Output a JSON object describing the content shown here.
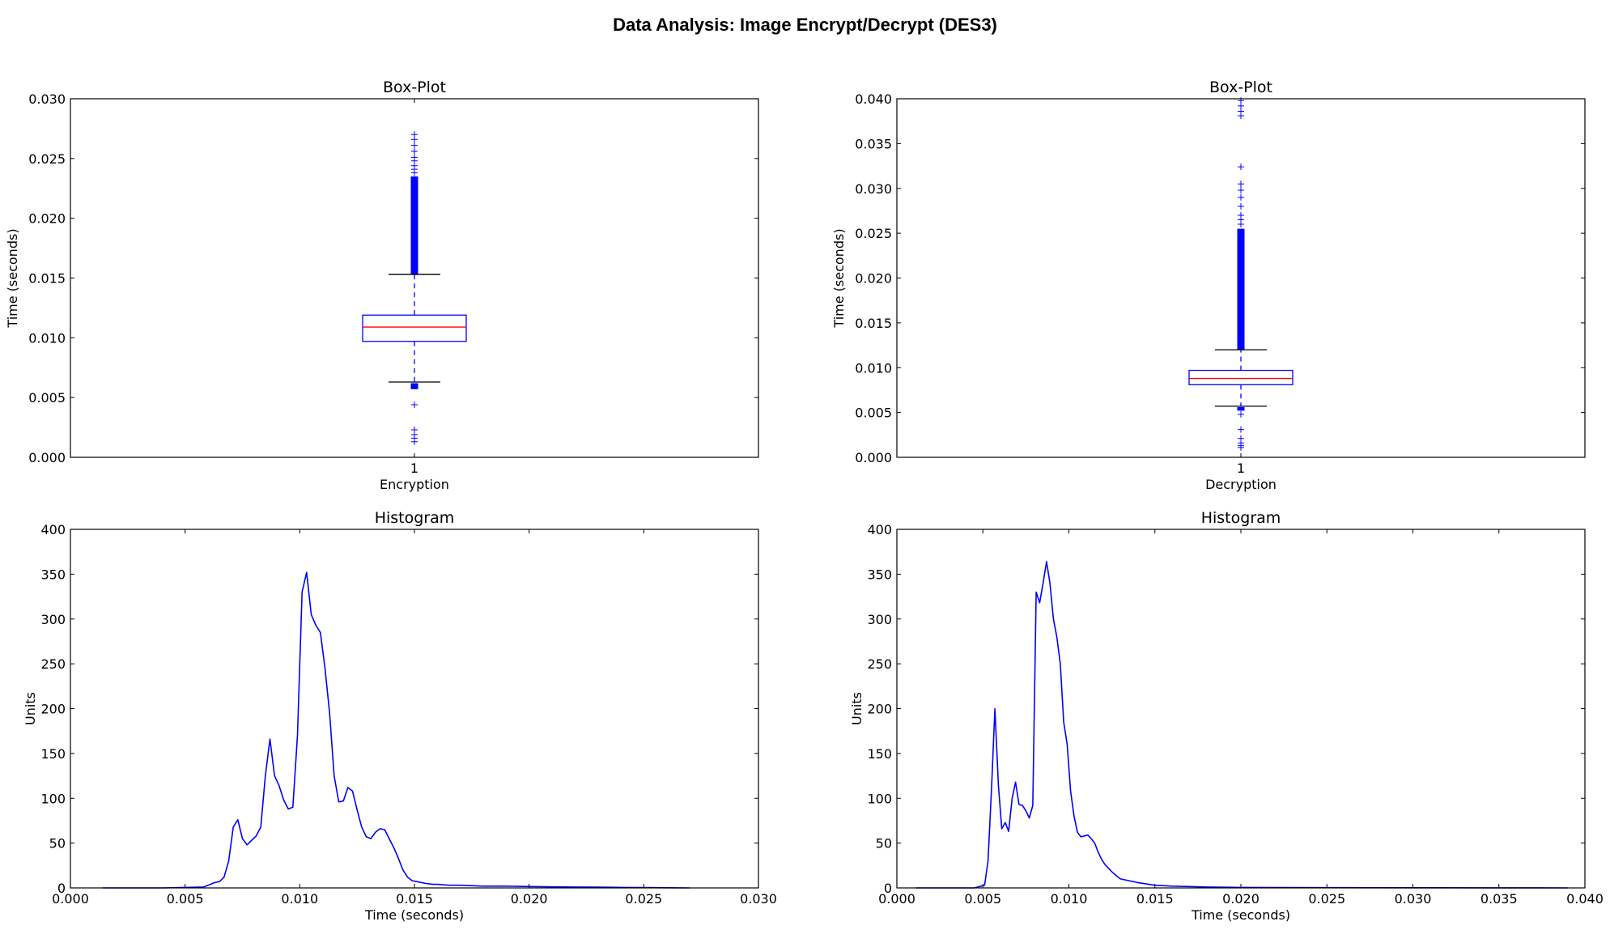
{
  "figure": {
    "title": "Data Analysis: Image Encrypt/Decrypt (DES3)"
  },
  "colors": {
    "series": "#0000ff",
    "median": "#ff0000",
    "whisker_cap": "#000000",
    "axes": "#000000"
  },
  "chart_data": [
    {
      "type": "box",
      "title": "Box-Plot",
      "xlabel": "Encryption",
      "ylabel": "Time (seconds)",
      "categories": [
        "1"
      ],
      "ylim": [
        0,
        0.03
      ],
      "yticks": [
        0.0,
        0.005,
        0.01,
        0.015,
        0.02,
        0.025,
        0.03
      ],
      "ytick_labels": [
        "0.000",
        "0.005",
        "0.010",
        "0.015",
        "0.020",
        "0.025",
        "0.030"
      ],
      "box": {
        "q1": 0.0097,
        "median": 0.0109,
        "q3": 0.0119,
        "whisker_low": 0.0063,
        "whisker_high": 0.0153
      },
      "outliers_high_dense_range": [
        0.0153,
        0.0235
      ],
      "outliers_high": [
        0.0238,
        0.0241,
        0.0244,
        0.0248,
        0.0251,
        0.0256,
        0.0261,
        0.0266,
        0.027
      ],
      "outliers_low_dense_range": [
        0.0057,
        0.0062
      ],
      "outliers_low": [
        0.0044,
        0.0023,
        0.0019,
        0.0016,
        0.0013
      ]
    },
    {
      "type": "box",
      "title": "Box-Plot",
      "xlabel": "Decryption",
      "ylabel": "Time (seconds)",
      "categories": [
        "1"
      ],
      "ylim": [
        0,
        0.04
      ],
      "yticks": [
        0.0,
        0.005,
        0.01,
        0.015,
        0.02,
        0.025,
        0.03,
        0.035,
        0.04
      ],
      "ytick_labels": [
        "0.000",
        "0.005",
        "0.010",
        "0.015",
        "0.020",
        "0.025",
        "0.030",
        "0.035",
        "0.040"
      ],
      "box": {
        "q1": 0.0081,
        "median": 0.0088,
        "q3": 0.0097,
        "whisker_low": 0.0057,
        "whisker_high": 0.012
      },
      "outliers_high_dense_range": [
        0.012,
        0.0255
      ],
      "outliers_high": [
        0.026,
        0.0265,
        0.027,
        0.028,
        0.029,
        0.0298,
        0.0305,
        0.0324,
        0.0381,
        0.0386,
        0.0392,
        0.0398
      ],
      "outliers_low_dense_range": [
        0.0052,
        0.0056
      ],
      "outliers_low": [
        0.0048,
        0.0031,
        0.0021,
        0.0016,
        0.0013,
        0.0011
      ]
    },
    {
      "type": "line",
      "title": "Histogram",
      "xlabel": "Time (seconds)",
      "ylabel": "Units",
      "xlim": [
        0,
        0.03
      ],
      "ylim": [
        0,
        400
      ],
      "xticks": [
        0.0,
        0.005,
        0.01,
        0.015,
        0.02,
        0.025,
        0.03
      ],
      "xtick_labels": [
        "0.000",
        "0.005",
        "0.010",
        "0.015",
        "0.020",
        "0.025",
        "0.030"
      ],
      "yticks": [
        0,
        50,
        100,
        150,
        200,
        250,
        300,
        350,
        400
      ],
      "ytick_labels": [
        "0",
        "50",
        "100",
        "150",
        "200",
        "250",
        "300",
        "350",
        "400"
      ],
      "x": [
        0.0014,
        0.004,
        0.0058,
        0.006,
        0.0063,
        0.0065,
        0.0067,
        0.0069,
        0.0071,
        0.0073,
        0.0075,
        0.0077,
        0.0079,
        0.0081,
        0.0083,
        0.0085,
        0.0087,
        0.0089,
        0.0091,
        0.0093,
        0.0095,
        0.0097,
        0.0099,
        0.0101,
        0.0103,
        0.0105,
        0.0107,
        0.0109,
        0.0111,
        0.0113,
        0.0115,
        0.0117,
        0.0119,
        0.0121,
        0.0123,
        0.0125,
        0.0127,
        0.0129,
        0.0131,
        0.0133,
        0.0135,
        0.0137,
        0.0139,
        0.0141,
        0.0143,
        0.0145,
        0.0147,
        0.0149,
        0.0151,
        0.0153,
        0.0155,
        0.0158,
        0.016,
        0.0165,
        0.017,
        0.018,
        0.019,
        0.02,
        0.021,
        0.022,
        0.023,
        0.024,
        0.025,
        0.026,
        0.027
      ],
      "y": [
        0,
        0,
        1,
        3,
        6,
        7,
        12,
        30,
        68,
        76,
        55,
        48,
        53,
        58,
        68,
        125,
        166,
        125,
        114,
        98,
        88,
        90,
        170,
        330,
        352,
        305,
        293,
        285,
        245,
        195,
        125,
        96,
        97,
        112,
        108,
        87,
        68,
        57,
        55,
        62,
        66,
        65,
        55,
        45,
        33,
        20,
        12,
        8,
        7,
        6,
        5,
        4,
        4,
        3,
        3,
        2,
        2,
        1.5,
        1.2,
        1,
        0.8,
        0.5,
        0.4,
        0.2,
        0
      ]
    },
    {
      "type": "line",
      "title": "Histogram",
      "xlabel": "Time (seconds)",
      "ylabel": "Units",
      "xlim": [
        0,
        0.04
      ],
      "ylim": [
        0,
        400
      ],
      "xticks": [
        0.0,
        0.005,
        0.01,
        0.015,
        0.02,
        0.025,
        0.03,
        0.035,
        0.04
      ],
      "xtick_labels": [
        "0.000",
        "0.005",
        "0.010",
        "0.015",
        "0.020",
        "0.025",
        "0.030",
        "0.035",
        "0.040"
      ],
      "yticks": [
        0,
        50,
        100,
        150,
        200,
        250,
        300,
        350,
        400
      ],
      "ytick_labels": [
        "0",
        "50",
        "100",
        "150",
        "200",
        "250",
        "300",
        "350",
        "400"
      ],
      "x": [
        0.0011,
        0.003,
        0.0045,
        0.0051,
        0.0053,
        0.0055,
        0.0057,
        0.0059,
        0.0061,
        0.0063,
        0.0065,
        0.0067,
        0.0069,
        0.0071,
        0.0073,
        0.0075,
        0.0077,
        0.0079,
        0.0081,
        0.0083,
        0.0085,
        0.0087,
        0.0089,
        0.0091,
        0.0093,
        0.0095,
        0.0097,
        0.0099,
        0.0101,
        0.0103,
        0.0105,
        0.0107,
        0.0109,
        0.0111,
        0.0113,
        0.0115,
        0.0117,
        0.0119,
        0.0121,
        0.0123,
        0.0125,
        0.0128,
        0.013,
        0.0135,
        0.014,
        0.015,
        0.016,
        0.017,
        0.018,
        0.02,
        0.025,
        0.03,
        0.035,
        0.039
      ],
      "y": [
        0,
        0,
        0,
        3,
        30,
        110,
        200,
        115,
        66,
        73,
        63,
        100,
        118,
        93,
        92,
        86,
        78,
        92,
        330,
        318,
        340,
        364,
        340,
        300,
        280,
        250,
        185,
        160,
        108,
        80,
        62,
        57,
        58,
        59,
        55,
        50,
        40,
        32,
        26,
        22,
        18,
        13,
        10,
        8,
        6,
        3,
        2,
        1.5,
        1,
        0.5,
        0.3,
        0.2,
        0.1,
        0
      ]
    }
  ]
}
